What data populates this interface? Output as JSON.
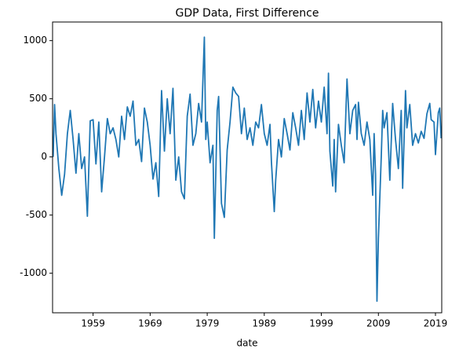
{
  "chart_data": {
    "type": "line",
    "title": "GDP Data, First Difference",
    "x_label": "date",
    "series": [
      {
        "name": "GDP",
        "color": "#1f77b4",
        "x": [
          1952,
          1952.25,
          1952.5,
          1953,
          1953.5,
          1954,
          1954.5,
          1955,
          1955.5,
          1956,
          1956.5,
          1957,
          1957.5,
          1958,
          1958.5,
          1959,
          1959.5,
          1960,
          1960.5,
          1961,
          1961.5,
          1962,
          1962.5,
          1963,
          1963.5,
          1964,
          1964.5,
          1965,
          1965.5,
          1966,
          1966.5,
          1967,
          1967.5,
          1968,
          1968.5,
          1969,
          1969.5,
          1970,
          1970.5,
          1971,
          1971.5,
          1972,
          1972.5,
          1973,
          1973.5,
          1974,
          1974.5,
          1975,
          1975.5,
          1976,
          1976.5,
          1977,
          1977.5,
          1978,
          1978.5,
          1978.75,
          1979,
          1979.5,
          1980,
          1980.25,
          1980.75,
          1981,
          1981.5,
          1982,
          1982.5,
          1983,
          1983.5,
          1984,
          1984.5,
          1985,
          1985.5,
          1986,
          1986.5,
          1987,
          1987.5,
          1988,
          1988.5,
          1989,
          1989.5,
          1990,
          1990.25,
          1990.75,
          1991,
          1991.5,
          1992,
          1992.5,
          1993,
          1993.5,
          1994,
          1994.5,
          1995,
          1995.5,
          1996,
          1996.5,
          1997,
          1997.5,
          1998,
          1998.5,
          1999,
          1999.5,
          2000,
          2000.25,
          2000.5,
          2001,
          2001.25,
          2001.5,
          2002,
          2002.5,
          2003,
          2003.5,
          2004,
          2004.5,
          2005,
          2005.25,
          2005.5,
          2006,
          2006.5,
          2007,
          2007.5,
          2008,
          2008.25,
          2008.5,
          2008.75,
          2009,
          2009.5,
          2009.75,
          2010,
          2010.5,
          2011,
          2011.5,
          2012,
          2012.5,
          2013,
          2013.25,
          2013.75,
          2014,
          2014.5,
          2015,
          2015.5,
          2016,
          2016.5,
          2017,
          2017.5,
          2018,
          2018.25,
          2018.75,
          2019,
          2019.5,
          2019.75,
          2020
        ],
        "values": [
          0,
          450,
          200,
          -100,
          -330,
          -150,
          200,
          400,
          150,
          -140,
          200,
          -100,
          0,
          -510,
          310,
          320,
          -60,
          300,
          -300,
          0,
          330,
          200,
          250,
          150,
          0,
          350,
          150,
          430,
          350,
          480,
          100,
          150,
          -40,
          420,
          300,
          100,
          -190,
          -50,
          -340,
          570,
          50,
          500,
          200,
          590,
          -200,
          0,
          -300,
          -360,
          350,
          540,
          100,
          200,
          460,
          300,
          1030,
          150,
          300,
          -50,
          100,
          -700,
          400,
          520,
          -400,
          -520,
          60,
          300,
          600,
          550,
          520,
          200,
          420,
          150,
          250,
          100,
          300,
          250,
          450,
          200,
          100,
          280,
          -40,
          -470,
          -200,
          150,
          0,
          330,
          200,
          60,
          380,
          250,
          100,
          400,
          150,
          550,
          300,
          580,
          250,
          480,
          300,
          600,
          200,
          720,
          50,
          -250,
          150,
          -300,
          280,
          100,
          -50,
          670,
          200,
          400,
          450,
          150,
          470,
          200,
          100,
          300,
          150,
          -330,
          200,
          -150,
          -1240,
          -700,
          0,
          400,
          250,
          380,
          -200,
          460,
          150,
          -100,
          400,
          -270,
          570,
          250,
          450,
          100,
          200,
          120,
          220,
          160,
          370,
          460,
          320,
          300,
          20,
          380,
          420,
          160
        ]
      }
    ],
    "xlim": [
      1951.9,
      2020.1
    ],
    "xticks": [
      1959,
      1969,
      1979,
      1989,
      1999,
      2009,
      2019
    ],
    "ylim": [
      -1340,
      1160
    ],
    "yticks": [
      -1000,
      -500,
      0,
      500,
      1000
    ],
    "grid": false
  }
}
